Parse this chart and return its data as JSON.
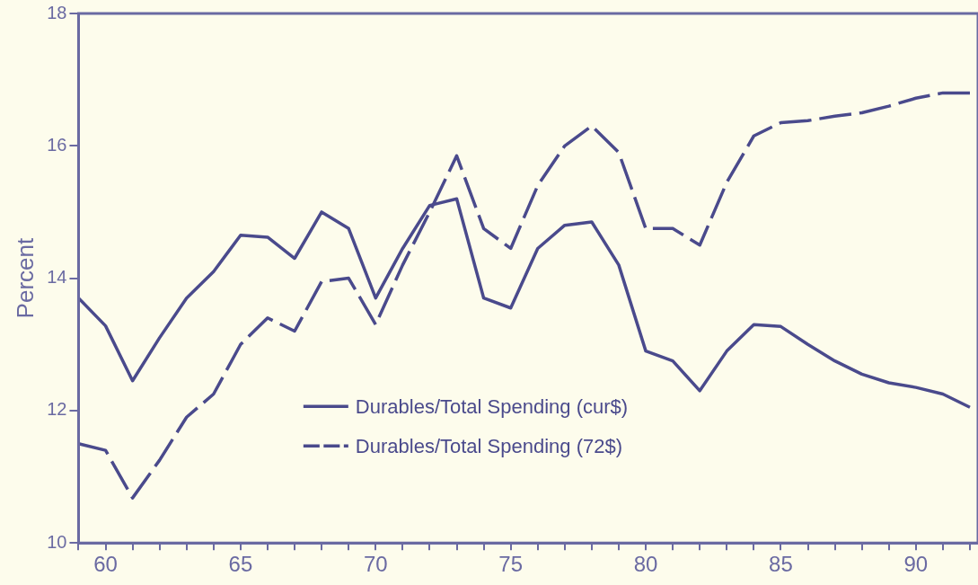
{
  "chart_data": {
    "type": "line",
    "ylabel": "Percent",
    "x": [
      59,
      60,
      61,
      62,
      63,
      64,
      65,
      66,
      67,
      68,
      69,
      70,
      71,
      72,
      73,
      74,
      75,
      76,
      77,
      78,
      79,
      80,
      81,
      82,
      83,
      84,
      85,
      86,
      87,
      88,
      89,
      90,
      91,
      92
    ],
    "xlim": [
      59,
      92.3
    ],
    "ylim": [
      10,
      18
    ],
    "xticks": [
      {
        "value": 59,
        "label": null
      },
      60,
      {
        "value": 61,
        "label": null
      },
      {
        "value": 62,
        "label": null
      },
      {
        "value": 63,
        "label": null
      },
      {
        "value": 64,
        "label": null
      },
      65,
      {
        "value": 66,
        "label": null
      },
      {
        "value": 67,
        "label": null
      },
      {
        "value": 68,
        "label": null
      },
      {
        "value": 69,
        "label": null
      },
      70,
      {
        "value": 71,
        "label": null
      },
      {
        "value": 72,
        "label": null
      },
      {
        "value": 73,
        "label": null
      },
      {
        "value": 74,
        "label": null
      },
      75,
      {
        "value": 76,
        "label": null
      },
      {
        "value": 77,
        "label": null
      },
      {
        "value": 78,
        "label": null
      },
      {
        "value": 79,
        "label": null
      },
      80,
      {
        "value": 81,
        "label": null
      },
      {
        "value": 82,
        "label": null
      },
      {
        "value": 83,
        "label": null
      },
      {
        "value": 84,
        "label": null
      },
      85,
      {
        "value": 86,
        "label": null
      },
      {
        "value": 87,
        "label": null
      },
      {
        "value": 88,
        "label": null
      },
      {
        "value": 89,
        "label": null
      },
      90,
      {
        "value": 91,
        "label": null
      },
      {
        "value": 92,
        "label": null
      }
    ],
    "yticks": [
      10,
      12,
      14,
      16,
      18
    ],
    "grid": false,
    "legend": "bottom",
    "marker": "none",
    "series": [
      {
        "name": "Durables/Total Spending (cur$)",
        "color": "#4a4a8c",
        "line_style": "solid",
        "values": [
          13.7,
          13.28,
          12.45,
          13.1,
          13.7,
          14.1,
          14.65,
          14.62,
          14.3,
          15.0,
          14.75,
          13.7,
          14.45,
          15.1,
          15.2,
          13.7,
          13.55,
          14.45,
          14.8,
          14.85,
          14.2,
          12.9,
          12.75,
          12.3,
          12.9,
          13.3,
          13.27,
          13.0,
          12.75,
          12.55,
          12.42,
          12.35,
          12.25,
          12.05
        ]
      },
      {
        "name": "Durables/Total Spending (72$)",
        "color": "#4a4a8c",
        "line_style": "dashed",
        "values": [
          11.5,
          11.4,
          10.68,
          11.25,
          11.9,
          12.25,
          13.0,
          13.4,
          13.2,
          13.95,
          14.0,
          13.3,
          14.2,
          15.0,
          15.85,
          14.75,
          14.45,
          15.4,
          16.0,
          16.3,
          15.9,
          14.75,
          14.75,
          14.5,
          15.45,
          16.15,
          16.35,
          16.38,
          16.45,
          16.5,
          16.6,
          16.72,
          16.8,
          16.8
        ]
      }
    ]
  }
}
